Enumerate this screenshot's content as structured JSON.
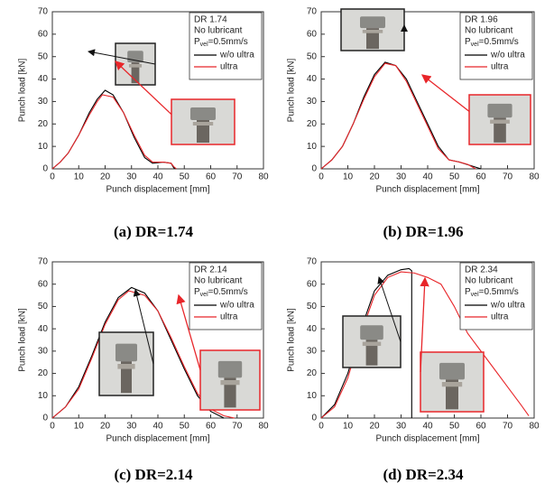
{
  "chart_data": [
    {
      "type": "line",
      "caption": "(a) DR=1.74",
      "xlabel": "Punch displacement [mm]",
      "ylabel": "Punch load [kN]",
      "annotations": [
        "DR 1.74",
        "No lubricant"
      ],
      "velocity_label": {
        "base": "P",
        "subscript": "vel",
        "rest": "=0.5mm/s"
      },
      "xlim": [
        0,
        80
      ],
      "xticks": [
        0,
        10,
        20,
        30,
        40,
        50,
        60,
        70,
        80
      ],
      "ylim": [
        0,
        70
      ],
      "yticks": [
        0,
        10,
        20,
        30,
        40,
        50,
        60,
        70
      ],
      "series": [
        {
          "name": "w/o ultra",
          "color": "#000000",
          "x": [
            0,
            3,
            6,
            10,
            14,
            17,
            20,
            23,
            27,
            31,
            35,
            38,
            42,
            45,
            46,
            47
          ],
          "values": [
            0,
            3,
            7,
            15,
            25,
            31,
            35,
            33,
            25,
            14,
            5,
            2.5,
            3,
            2.5,
            0.5,
            0
          ]
        },
        {
          "name": "ultra",
          "color": "#e8262a",
          "x": [
            0,
            3,
            6,
            10,
            14,
            17,
            19,
            23,
            27,
            31,
            35,
            38,
            42,
            45,
            46,
            47
          ],
          "values": [
            0,
            3,
            7,
            15,
            24,
            30,
            33,
            32,
            25,
            15,
            6,
            3,
            3,
            2.5,
            1,
            0
          ]
        }
      ]
    },
    {
      "type": "line",
      "caption": "(b) DR=1.96",
      "xlabel": "Punch displacement [mm]",
      "ylabel": "Punch load [kN]",
      "annotations": [
        "DR 1.96",
        "No lubricant"
      ],
      "velocity_label": {
        "base": "P",
        "subscript": "vel",
        "rest": "=0.5mm/s"
      },
      "xlim": [
        0,
        80
      ],
      "xticks": [
        0,
        10,
        20,
        30,
        40,
        50,
        60,
        70,
        80
      ],
      "ylim": [
        0,
        70
      ],
      "yticks": [
        0,
        10,
        20,
        30,
        40,
        50,
        60,
        70
      ],
      "series": [
        {
          "name": "w/o ultra",
          "color": "#000000",
          "x": [
            0,
            4,
            8,
            12,
            16,
            20,
            24,
            28,
            32,
            36,
            40,
            44,
            48,
            52,
            56,
            60
          ],
          "values": [
            0,
            4,
            10,
            20,
            32,
            42,
            47.5,
            46,
            40,
            30,
            20,
            10,
            4,
            3,
            1.5,
            0
          ]
        },
        {
          "name": "ultra",
          "color": "#e8262a",
          "x": [
            0,
            4,
            8,
            12,
            16,
            20,
            24,
            28,
            32,
            36,
            40,
            44,
            48,
            52,
            55,
            58
          ],
          "values": [
            0,
            4,
            10,
            20,
            31,
            41,
            47,
            46,
            39,
            29,
            19,
            9,
            4,
            3,
            2,
            0
          ]
        }
      ]
    },
    {
      "type": "line",
      "caption": "(c) DR=2.14",
      "xlabel": "Punch displacement [mm]",
      "ylabel": "Punch load [kN]",
      "annotations": [
        "DR 2.14",
        "No lubricant"
      ],
      "velocity_label": {
        "base": "P",
        "subscript": "vel",
        "rest": "=0.5mm/s"
      },
      "xlim": [
        0,
        80
      ],
      "xticks": [
        0,
        10,
        20,
        30,
        40,
        50,
        60,
        70,
        80
      ],
      "ylim": [
        0,
        70
      ],
      "yticks": [
        0,
        10,
        20,
        30,
        40,
        50,
        60,
        70
      ],
      "series": [
        {
          "name": "w/o ultra",
          "color": "#000000",
          "x": [
            0,
            5,
            10,
            15,
            20,
            25,
            30,
            35,
            40,
            45,
            50,
            55,
            60,
            65
          ],
          "values": [
            0,
            5,
            14,
            28,
            43,
            54,
            58.5,
            56,
            48,
            35,
            22,
            10,
            3,
            0
          ]
        },
        {
          "name": "ultra",
          "color": "#e8262a",
          "x": [
            0,
            5,
            10,
            15,
            20,
            25,
            29,
            35,
            40,
            45,
            50,
            55,
            60,
            65,
            69
          ],
          "values": [
            0,
            5,
            13,
            27,
            42,
            53,
            57,
            55,
            48,
            36,
            23,
            11,
            4,
            1,
            0
          ]
        }
      ]
    },
    {
      "type": "line",
      "caption": "(d) DR=2.34",
      "xlabel": "Punch displacement [mm]",
      "ylabel": "Punch load [kN]",
      "annotations": [
        "DR 2.34",
        "No lubricant"
      ],
      "velocity_label": {
        "base": "P",
        "subscript": "vel",
        "rest": "=0.5mm/s"
      },
      "xlim": [
        0,
        80
      ],
      "xticks": [
        0,
        10,
        20,
        30,
        40,
        50,
        60,
        70,
        80
      ],
      "ylim": [
        0,
        70
      ],
      "yticks": [
        0,
        10,
        20,
        30,
        40,
        50,
        60,
        70
      ],
      "series": [
        {
          "name": "w/o ultra",
          "color": "#000000",
          "x": [
            0,
            5,
            10,
            15,
            20,
            25,
            30,
            33,
            34,
            34
          ],
          "values": [
            0,
            6,
            20,
            40,
            57,
            64,
            66.5,
            67,
            66,
            0
          ]
        },
        {
          "name": "ultra",
          "color": "#e8262a",
          "x": [
            0,
            5,
            10,
            15,
            20,
            25,
            30,
            35,
            40,
            45,
            50,
            55,
            60,
            65,
            70,
            75,
            78
          ],
          "values": [
            0,
            5,
            18,
            38,
            55,
            63,
            65.5,
            65,
            63,
            60,
            50,
            38,
            30,
            22,
            14,
            6,
            1
          ]
        }
      ]
    }
  ]
}
